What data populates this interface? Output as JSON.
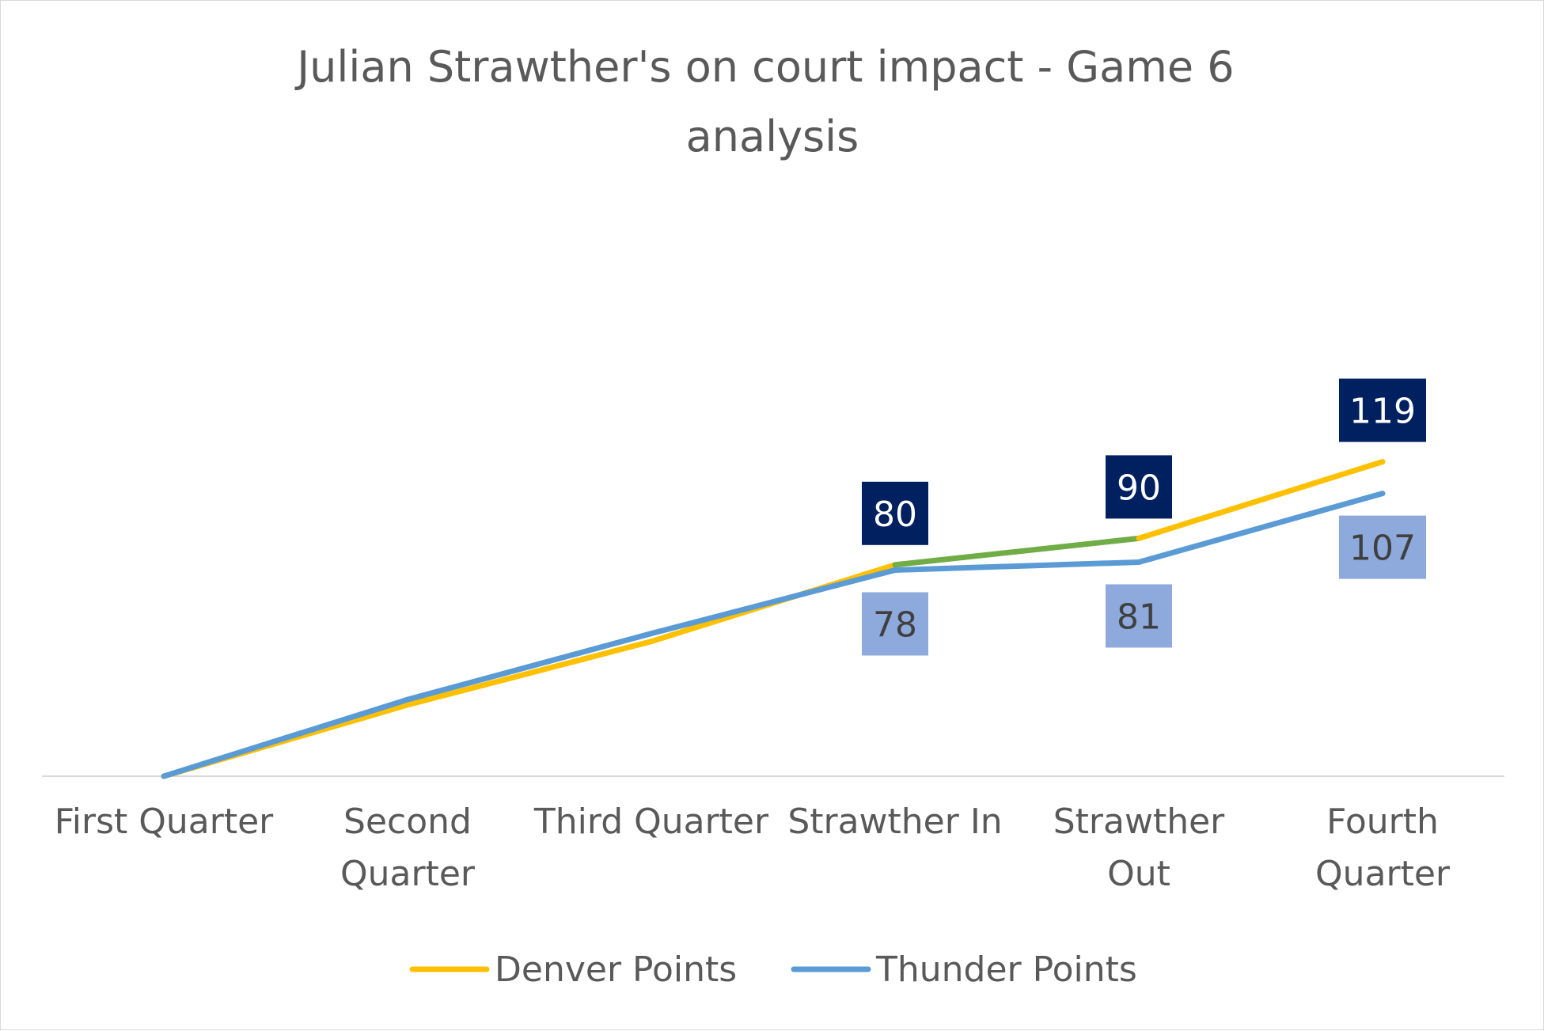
{
  "chart_data": {
    "type": "line",
    "title": "Julian Strawther's on court impact - Game 6 analysis",
    "categories": [
      "First Quarter",
      "Second Quarter",
      "Third Quarter",
      "Strawther In",
      "Strawther Out",
      "Fourth Quarter"
    ],
    "series": [
      {
        "name": "Denver Points",
        "values": [
          0,
          27,
          51,
          80,
          90,
          119
        ],
        "color": "#FFC000"
      },
      {
        "name": "Thunder Points",
        "values": [
          0,
          29,
          54,
          78,
          81,
          107
        ],
        "color": "#5B9BD5"
      }
    ],
    "highlight_segment": {
      "series": "Denver Points",
      "from": "Strawther In",
      "to": "Strawther Out",
      "color": "#70AD47"
    },
    "data_labels": {
      "Denver Points": {
        "indices": [
          3,
          4,
          5
        ],
        "background": "#002060",
        "text_color": "#FFFFFF"
      },
      "Thunder Points": {
        "indices": [
          3,
          4,
          5
        ],
        "background": "#8EA9DB",
        "text_color": "#404040"
      }
    },
    "ylim": [
      0,
      140
    ],
    "xlabel": "",
    "ylabel": "",
    "grid": false,
    "legend_position": "bottom"
  }
}
